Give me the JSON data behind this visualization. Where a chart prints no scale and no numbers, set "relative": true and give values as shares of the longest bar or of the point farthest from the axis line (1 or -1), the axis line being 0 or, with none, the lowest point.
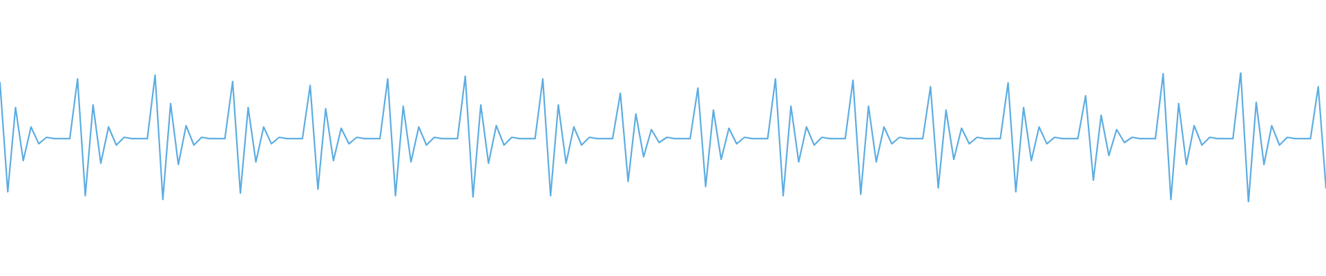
{
  "chart_data": {
    "type": "line",
    "relative": true,
    "categories": [
      null,
      null,
      null,
      null,
      null,
      null,
      null,
      null,
      null,
      null,
      null,
      null,
      null,
      null,
      null,
      null,
      null,
      null,
      null,
      null,
      null,
      null,
      null,
      null,
      null,
      null,
      null,
      null,
      null,
      null,
      null,
      null,
      null,
      null,
      null,
      null,
      null,
      null,
      null,
      null,
      null,
      null,
      null,
      null,
      null,
      null,
      null,
      null,
      null,
      null,
      null,
      null,
      null,
      null,
      null,
      null,
      null,
      null,
      null,
      null,
      null,
      null,
      null,
      null,
      null,
      null,
      null,
      null,
      null,
      null,
      null,
      null,
      null,
      null,
      null,
      null,
      null,
      null,
      null,
      null,
      null,
      null,
      null,
      null,
      null,
      null,
      null,
      null,
      null,
      null,
      null,
      null,
      null,
      null,
      null,
      null,
      null,
      null,
      null,
      null,
      null,
      null,
      null,
      null,
      null,
      null,
      null,
      null,
      null,
      null,
      null,
      null,
      null,
      null,
      null,
      null,
      null,
      null,
      null,
      null,
      null,
      null,
      null,
      null,
      null,
      null,
      null,
      null,
      null,
      null,
      null,
      null,
      null,
      null,
      null,
      null,
      null,
      null,
      null,
      null,
      null,
      null,
      null,
      null,
      null,
      null,
      null,
      null,
      null,
      null,
      null,
      null,
      null,
      null,
      null,
      null,
      null,
      null,
      null,
      null,
      null,
      null,
      null,
      null,
      null,
      null,
      null,
      null,
      null,
      null,
      null,
      null
    ],
    "series": [
      {
        "color": "#5dade2",
        "values": [
          0.92,
          0.08,
          0.73,
          0.32,
          0.58,
          0.45,
          0.5,
          0.49,
          0.49,
          0.49,
          0.95,
          0.05,
          0.75,
          0.3,
          0.58,
          0.44,
          0.5,
          0.49,
          0.49,
          0.49,
          0.98,
          0.02,
          0.76,
          0.29,
          0.59,
          0.44,
          0.5,
          0.49,
          0.49,
          0.49,
          0.93,
          0.07,
          0.73,
          0.31,
          0.58,
          0.45,
          0.5,
          0.49,
          0.49,
          0.49,
          0.9,
          0.1,
          0.72,
          0.32,
          0.57,
          0.45,
          0.5,
          0.49,
          0.49,
          0.49,
          0.95,
          0.05,
          0.74,
          0.31,
          0.58,
          0.44,
          0.5,
          0.49,
          0.49,
          0.49,
          0.97,
          0.04,
          0.75,
          0.3,
          0.59,
          0.44,
          0.5,
          0.49,
          0.49,
          0.49,
          0.95,
          0.05,
          0.75,
          0.3,
          0.58,
          0.44,
          0.5,
          0.49,
          0.49,
          0.49,
          0.84,
          0.16,
          0.68,
          0.35,
          0.56,
          0.46,
          0.5,
          0.49,
          0.49,
          0.49,
          0.88,
          0.12,
          0.71,
          0.33,
          0.57,
          0.45,
          0.5,
          0.49,
          0.49,
          0.49,
          0.95,
          0.05,
          0.74,
          0.31,
          0.58,
          0.44,
          0.5,
          0.49,
          0.49,
          0.49,
          0.94,
          0.06,
          0.74,
          0.31,
          0.58,
          0.45,
          0.5,
          0.49,
          0.49,
          0.49,
          0.89,
          0.11,
          0.71,
          0.33,
          0.57,
          0.45,
          0.5,
          0.49,
          0.49,
          0.49,
          0.92,
          0.08,
          0.73,
          0.32,
          0.58,
          0.45,
          0.5,
          0.49,
          0.49,
          0.49,
          0.82,
          0.17,
          0.67,
          0.36,
          0.56,
          0.46,
          0.5,
          0.49,
          0.49,
          0.49,
          0.99,
          0.02,
          0.76,
          0.29,
          0.59,
          0.44,
          0.5,
          0.49,
          0.49,
          0.49,
          1.0,
          0.0,
          0.77,
          0.29,
          0.59,
          0.44,
          0.5,
          0.49,
          0.49,
          0.49,
          0.89,
          0.11
        ]
      }
    ]
  }
}
